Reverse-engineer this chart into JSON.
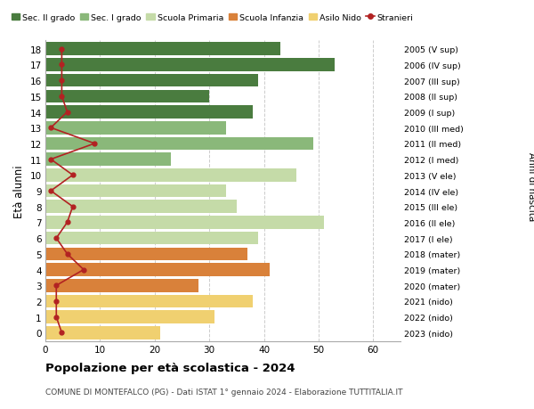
{
  "ages": [
    18,
    17,
    16,
    15,
    14,
    13,
    12,
    11,
    10,
    9,
    8,
    7,
    6,
    5,
    4,
    3,
    2,
    1,
    0
  ],
  "years_by_age": {
    "18": "2005 (V sup)",
    "17": "2006 (IV sup)",
    "16": "2007 (III sup)",
    "15": "2008 (II sup)",
    "14": "2009 (I sup)",
    "13": "2010 (III med)",
    "12": "2011 (II med)",
    "11": "2012 (I med)",
    "10": "2013 (V ele)",
    "9": "2014 (IV ele)",
    "8": "2015 (III ele)",
    "7": "2016 (II ele)",
    "6": "2017 (I ele)",
    "5": "2018 (mater)",
    "4": "2019 (mater)",
    "3": "2020 (mater)",
    "2": "2021 (nido)",
    "1": "2022 (nido)",
    "0": "2023 (nido)"
  },
  "bar_values_by_age": {
    "18": 43,
    "17": 53,
    "16": 39,
    "15": 30,
    "14": 38,
    "13": 33,
    "12": 49,
    "11": 23,
    "10": 46,
    "9": 33,
    "8": 35,
    "7": 51,
    "6": 39,
    "5": 37,
    "4": 41,
    "3": 28,
    "2": 38,
    "1": 31,
    "0": 21
  },
  "bar_colors_by_age": {
    "18": "#4a7c3f",
    "17": "#4a7c3f",
    "16": "#4a7c3f",
    "15": "#4a7c3f",
    "14": "#4a7c3f",
    "13": "#8ab87a",
    "12": "#8ab87a",
    "11": "#8ab87a",
    "10": "#c5dba8",
    "9": "#c5dba8",
    "8": "#c5dba8",
    "7": "#c5dba8",
    "6": "#c5dba8",
    "5": "#d9813a",
    "4": "#d9813a",
    "3": "#d9813a",
    "2": "#f0d070",
    "1": "#f0d070",
    "0": "#f0d070"
  },
  "stranieri_by_age": {
    "18": 3,
    "17": 3,
    "16": 3,
    "15": 3,
    "14": 4,
    "13": 1,
    "12": 9,
    "11": 1,
    "10": 5,
    "9": 1,
    "8": 5,
    "7": 4,
    "6": 2,
    "5": 4,
    "4": 7,
    "3": 2,
    "2": 2,
    "1": 2,
    "0": 3
  },
  "stranieri_color": "#b22222",
  "legend_labels": [
    "Sec. II grado",
    "Sec. I grado",
    "Scuola Primaria",
    "Scuola Infanzia",
    "Asilo Nido",
    "Stranieri"
  ],
  "legend_colors": [
    "#4a7c3f",
    "#8ab87a",
    "#c5dba8",
    "#d9813a",
    "#f0d070",
    "#b22222"
  ],
  "ylabel": "Età alunni",
  "right_label": "Anni di nascita",
  "title": "Popolazione per età scolastica - 2024",
  "subtitle": "COMUNE DI MONTEFALCO (PG) - Dati ISTAT 1° gennaio 2024 - Elaborazione TUTTITALIA.IT",
  "xlim": [
    0,
    65
  ],
  "xticks": [
    0,
    10,
    20,
    30,
    40,
    50,
    60
  ],
  "background_color": "#ffffff",
  "bar_height": 0.82,
  "grid_color": "#cccccc"
}
